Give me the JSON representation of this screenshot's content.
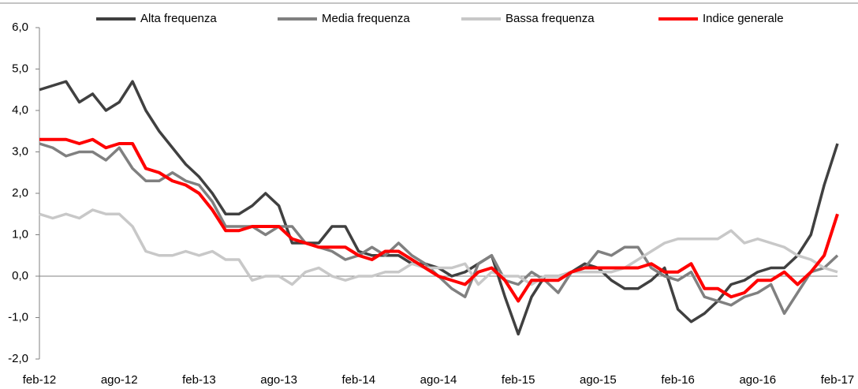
{
  "chart_data": {
    "type": "line",
    "categories": [
      "feb-12",
      null,
      null,
      null,
      null,
      null,
      "ago-12",
      null,
      null,
      null,
      null,
      null,
      "feb-13",
      null,
      null,
      null,
      null,
      null,
      "ago-13",
      null,
      null,
      null,
      null,
      null,
      "feb-14",
      null,
      null,
      null,
      null,
      null,
      "ago-14",
      null,
      null,
      null,
      null,
      null,
      "feb-15",
      null,
      null,
      null,
      null,
      null,
      "ago-15",
      null,
      null,
      null,
      null,
      null,
      "feb-16",
      null,
      null,
      null,
      null,
      null,
      "ago-16",
      null,
      null,
      null,
      null,
      null,
      "feb-17"
    ],
    "series": [
      {
        "name": "Alta frequenza",
        "color": "#404040",
        "values": [
          4.5,
          4.6,
          4.7,
          4.2,
          4.4,
          4.0,
          4.2,
          4.7,
          4.0,
          3.5,
          3.1,
          2.7,
          2.4,
          2.0,
          1.5,
          1.5,
          1.7,
          2.0,
          1.7,
          0.8,
          0.8,
          0.8,
          1.2,
          1.2,
          0.6,
          0.5,
          0.5,
          0.5,
          0.3,
          0.3,
          0.2,
          0.0,
          0.1,
          0.3,
          0.5,
          -0.5,
          -1.4,
          -0.5,
          0.0,
          0.0,
          0.1,
          0.3,
          0.2,
          -0.1,
          -0.3,
          -0.3,
          -0.1,
          0.2,
          -0.8,
          -1.1,
          -0.9,
          -0.6,
          -0.2,
          -0.1,
          0.1,
          0.2,
          0.2,
          0.5,
          1.0,
          2.2,
          3.2
        ]
      },
      {
        "name": "Media frequenza",
        "color": "#808080",
        "values": [
          3.2,
          3.1,
          2.9,
          3.0,
          3.0,
          2.8,
          3.1,
          2.6,
          2.3,
          2.3,
          2.5,
          2.3,
          2.2,
          1.8,
          1.2,
          1.2,
          1.2,
          1.0,
          1.2,
          1.2,
          0.8,
          0.7,
          0.6,
          0.4,
          0.5,
          0.7,
          0.5,
          0.8,
          0.5,
          0.3,
          0.0,
          -0.3,
          -0.5,
          0.3,
          0.5,
          -0.1,
          -0.2,
          0.1,
          -0.1,
          -0.4,
          0.1,
          0.2,
          0.6,
          0.5,
          0.7,
          0.7,
          0.2,
          0.0,
          -0.1,
          0.1,
          -0.5,
          -0.6,
          -0.7,
          -0.5,
          -0.4,
          -0.2,
          -0.9,
          -0.4,
          0.1,
          0.2,
          0.5
        ]
      },
      {
        "name": "Bassa frequenza",
        "color": "#c8c8c8",
        "values": [
          1.5,
          1.4,
          1.5,
          1.4,
          1.6,
          1.5,
          1.5,
          1.2,
          0.6,
          0.5,
          0.5,
          0.6,
          0.5,
          0.6,
          0.4,
          0.4,
          -0.1,
          0.0,
          0.0,
          -0.2,
          0.1,
          0.2,
          0.0,
          -0.1,
          0.0,
          0.0,
          0.1,
          0.1,
          0.3,
          0.2,
          0.2,
          0.2,
          0.3,
          -0.2,
          0.1,
          0.0,
          0.0,
          -0.2,
          0.0,
          0.0,
          0.1,
          0.1,
          0.1,
          0.1,
          0.2,
          0.4,
          0.6,
          0.8,
          0.9,
          0.9,
          0.9,
          0.9,
          1.1,
          0.8,
          0.9,
          0.8,
          0.7,
          0.5,
          0.4,
          0.2,
          0.1
        ]
      },
      {
        "name": "Indice generale",
        "color": "#ff0000",
        "values": [
          3.3,
          3.3,
          3.3,
          3.2,
          3.3,
          3.1,
          3.2,
          3.2,
          2.6,
          2.5,
          2.3,
          2.2,
          2.0,
          1.6,
          1.1,
          1.1,
          1.2,
          1.2,
          1.2,
          0.9,
          0.8,
          0.7,
          0.7,
          0.7,
          0.5,
          0.4,
          0.6,
          0.6,
          0.4,
          0.2,
          0.0,
          -0.1,
          -0.2,
          0.1,
          0.2,
          -0.1,
          -0.6,
          -0.1,
          -0.1,
          -0.1,
          0.1,
          0.2,
          0.2,
          0.2,
          0.2,
          0.2,
          0.3,
          0.1,
          0.1,
          0.3,
          -0.3,
          -0.3,
          -0.5,
          -0.4,
          -0.1,
          -0.1,
          0.1,
          -0.2,
          0.1,
          0.5,
          1.5
        ]
      }
    ],
    "ylim": [
      -2,
      6
    ],
    "yticks": [
      {
        "value": -2,
        "label": "-2,0"
      },
      {
        "value": -1,
        "label": "-1,0"
      },
      {
        "value": 0,
        "label": "0,0"
      },
      {
        "value": 1,
        "label": "1,0"
      },
      {
        "value": 2,
        "label": "2,0"
      },
      {
        "value": 3,
        "label": "3,0"
      },
      {
        "value": 4,
        "label": "4,0"
      },
      {
        "value": 5,
        "label": "5,0"
      },
      {
        "value": 6,
        "label": "6,0"
      }
    ],
    "legend": "top"
  }
}
